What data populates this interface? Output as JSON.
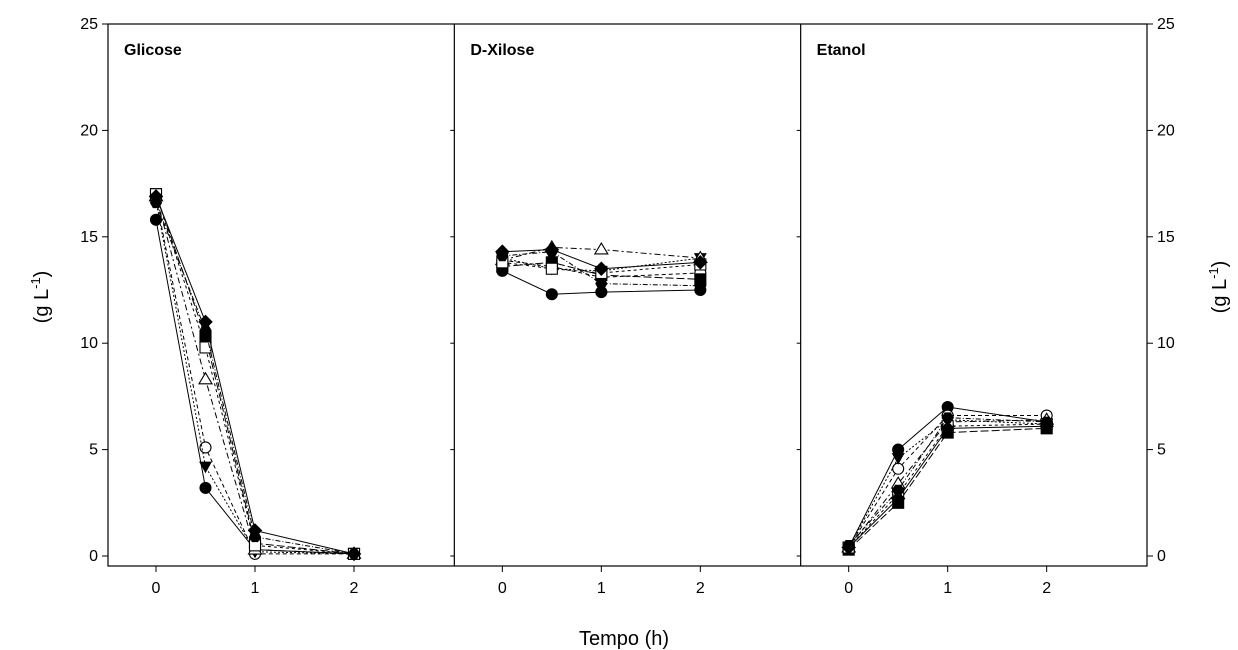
{
  "chart_data": {
    "type": "line",
    "xlabel": "Tempo (h)",
    "ylabel_left": "(g L-1)",
    "ylabel_right": "(g L-1)",
    "ylim": [
      0,
      25
    ],
    "xlim": [
      -0.5,
      3
    ],
    "yticks": [
      "0",
      "5",
      "10",
      "15",
      "20",
      "25"
    ],
    "xticks": [
      "0",
      "1",
      "2"
    ],
    "grid": false,
    "panels": [
      {
        "title": "Glicose",
        "x": [
          0,
          0.5,
          1,
          2
        ],
        "series": [
          {
            "marker": "circle-filled",
            "values": [
              15.8,
              3.2,
              0.3,
              0.1
            ]
          },
          {
            "marker": "circle-open",
            "values": [
              16.8,
              5.1,
              0.1,
              0.1
            ]
          },
          {
            "marker": "triangle-down-filled",
            "values": [
              16.7,
              4.2,
              0.2,
              0.1
            ]
          },
          {
            "marker": "triangle-open",
            "values": [
              16.9,
              8.3,
              0.3,
              0.1
            ]
          },
          {
            "marker": "square-filled",
            "values": [
              17.0,
              10.3,
              0.6,
              0.1
            ]
          },
          {
            "marker": "square-open",
            "values": [
              17.0,
              9.8,
              0.5,
              0.1
            ]
          },
          {
            "marker": "diamond-filled",
            "values": [
              16.9,
              11.0,
              1.2,
              0.1
            ]
          },
          {
            "marker": "hexagon-filled",
            "values": [
              16.6,
              10.6,
              0.9,
              0.1
            ]
          }
        ]
      },
      {
        "title": "D-Xilose",
        "x": [
          0,
          0.5,
          1,
          2
        ],
        "series": [
          {
            "marker": "circle-filled",
            "values": [
              13.4,
              12.3,
              12.4,
              12.5
            ]
          },
          {
            "marker": "circle-open",
            "values": [
              13.9,
              13.6,
              13.1,
              13.3
            ]
          },
          {
            "marker": "triangle-down-filled",
            "values": [
              14.0,
              13.5,
              13.4,
              14.0
            ]
          },
          {
            "marker": "triangle-open",
            "values": [
              13.9,
              14.5,
              14.4,
              14.0
            ]
          },
          {
            "marker": "square-filled",
            "values": [
              13.6,
              13.8,
              13.2,
              13.0
            ]
          },
          {
            "marker": "square-open",
            "values": [
              13.8,
              13.5,
              13.3,
              13.7
            ]
          },
          {
            "marker": "diamond-filled",
            "values": [
              14.3,
              14.4,
              13.5,
              13.8
            ]
          },
          {
            "marker": "hexagon-filled",
            "values": [
              14.1,
              14.3,
              12.8,
              12.7
            ]
          }
        ]
      },
      {
        "title": "Etanol",
        "x": [
          0,
          0.5,
          1,
          2
        ],
        "series": [
          {
            "marker": "circle-filled",
            "values": [
              0.4,
              5.0,
              7.0,
              6.3
            ]
          },
          {
            "marker": "circle-open",
            "values": [
              0.4,
              4.1,
              6.6,
              6.6
            ]
          },
          {
            "marker": "triangle-down-filled",
            "values": [
              0.4,
              4.6,
              6.4,
              6.2
            ]
          },
          {
            "marker": "triangle-open",
            "values": [
              0.4,
              3.4,
              6.3,
              6.4
            ]
          },
          {
            "marker": "square-filled",
            "values": [
              0.3,
              2.5,
              5.8,
              6.0
            ]
          },
          {
            "marker": "square-open",
            "values": [
              0.4,
              2.9,
              6.1,
              6.2
            ]
          },
          {
            "marker": "diamond-filled",
            "values": [
              0.4,
              2.7,
              6.0,
              6.1
            ]
          },
          {
            "marker": "hexagon-filled",
            "values": [
              0.5,
              3.1,
              6.5,
              6.3
            ]
          }
        ]
      }
    ]
  }
}
